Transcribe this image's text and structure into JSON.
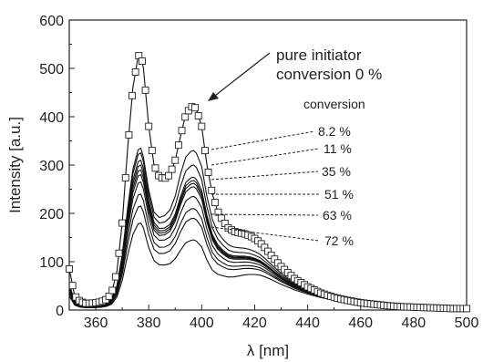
{
  "chart_data": {
    "type": "line",
    "xlabel": "λ [nm]",
    "ylabel": "Intensity [a.u.]",
    "xlim": [
      350,
      500
    ],
    "ylim": [
      0,
      600
    ],
    "x_ticks": [
      360,
      380,
      400,
      420,
      440,
      460,
      480,
      500
    ],
    "y_ticks": [
      0,
      100,
      200,
      300,
      400,
      500,
      600
    ],
    "grid": false,
    "annotations": {
      "pure_line1": "pure initiator",
      "pure_line2": "conversion 0 %",
      "conversion_header": "conversion",
      "labels": [
        "8.2 %",
        "11 %",
        "35 %",
        "51 %",
        "63 %",
        "72 %"
      ]
    },
    "x": [
      350,
      352,
      354,
      356,
      358,
      360,
      362,
      364,
      366,
      368,
      370,
      372,
      374,
      376,
      377,
      378,
      380,
      382,
      384,
      386,
      388,
      390,
      392,
      394,
      396,
      397,
      398,
      400,
      402,
      404,
      406,
      408,
      410,
      412,
      414,
      416,
      418,
      420,
      422,
      424,
      426,
      428,
      430,
      435,
      440,
      445,
      450,
      455,
      460,
      465,
      470,
      475,
      480,
      485,
      490,
      495,
      500
    ],
    "pure_initiator": {
      "name": "pure initiator conversion 0 %",
      "values": [
        85,
        30,
        18,
        14,
        14,
        15,
        17,
        22,
        35,
        80,
        180,
        330,
        460,
        525,
        530,
        500,
        380,
        300,
        275,
        272,
        280,
        310,
        360,
        405,
        420,
        422,
        415,
        380,
        300,
        240,
        205,
        185,
        170,
        163,
        160,
        158,
        154,
        148,
        140,
        128,
        115,
        102,
        90,
        65,
        48,
        35,
        26,
        20,
        15,
        12,
        9,
        7,
        6,
        5,
        4,
        3,
        3
      ]
    },
    "series_peak_heights": [
      {
        "name": "8.2 %",
        "peak1": 335,
        "peak2": 330
      },
      {
        "name": "11 %",
        "peak1": 325,
        "peak2": 300
      },
      {
        "name": "35 %",
        "peak1": 310,
        "peak2": 275
      },
      {
        "name": "51 %",
        "peak1": 300,
        "peak2": 268
      },
      {
        "name": "",
        "peak1": 290,
        "peak2": 262
      },
      {
        "name": "",
        "peak1": 280,
        "peak2": 255
      },
      {
        "name": "63 %",
        "peak1": 265,
        "peak2": 235
      },
      {
        "name": "72 %",
        "peak1": 240,
        "peak2": 210
      },
      {
        "name": "",
        "peak1": 215,
        "peak2": 190
      },
      {
        "name": "",
        "peak1": 180,
        "peak2": 145
      }
    ]
  }
}
